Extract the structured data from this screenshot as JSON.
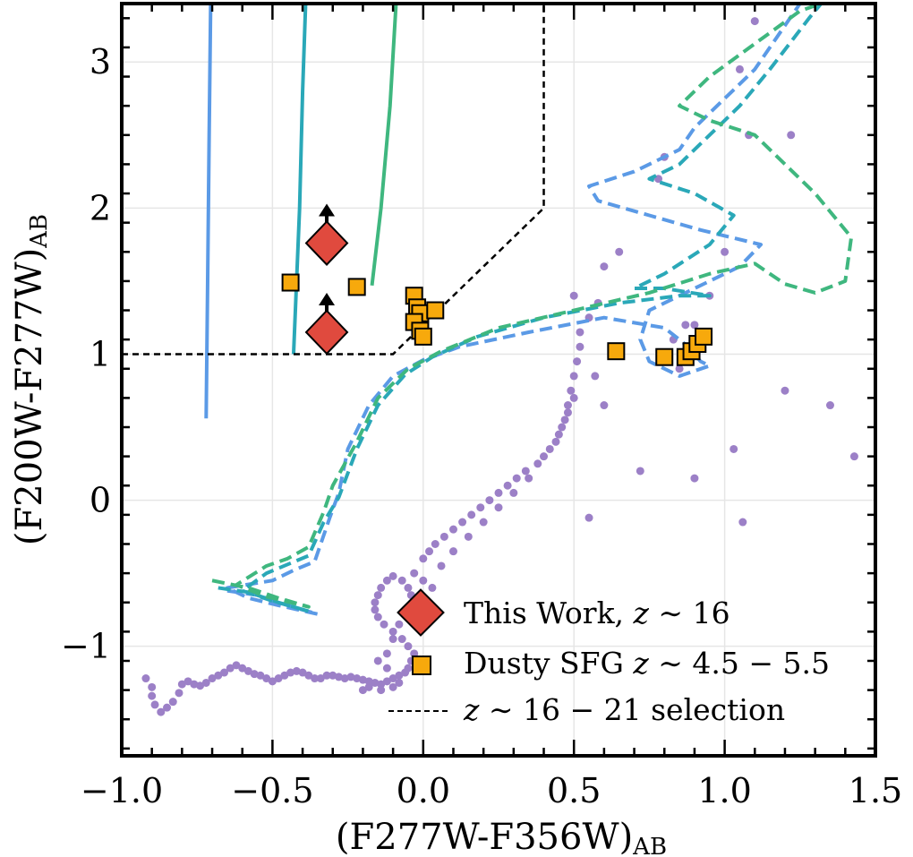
{
  "chart_data": {
    "type": "scatter",
    "xlabel": "(F277W-F356W)",
    "xlabel_sub": "AB",
    "ylabel": "(F200W-F277W)",
    "ylabel_sub": "AB",
    "xlim": [
      -1.0,
      1.5
    ],
    "ylim": [
      -1.75,
      3.4
    ],
    "xticks": [
      -1.0,
      -0.5,
      0.0,
      0.5,
      1.0,
      1.5
    ],
    "xtick_labels": [
      "−1.0",
      "−0.5",
      "0.0",
      "0.5",
      "1.0",
      "1.5"
    ],
    "yticks": [
      -1,
      0,
      1,
      2,
      3
    ],
    "ytick_labels": [
      "−1",
      "0",
      "1",
      "2",
      "3"
    ],
    "grid": true,
    "legend_position": "bottom-right",
    "legend": [
      {
        "label_pre": "This Work, ",
        "label_var": "z",
        "label_post": " ∼ 16"
      },
      {
        "label_pre": "Dusty SFG ",
        "label_var": "z",
        "label_post": " ∼ 4.5 − 5.5"
      },
      {
        "label_pre": "",
        "label_var": "z",
        "label_post": " ∼ 16 − 21 selection"
      }
    ],
    "this_work": {
      "color": "#e04a3e",
      "points": [
        [
          -0.32,
          1.76
        ],
        [
          -0.32,
          1.15
        ]
      ],
      "lower_limit": true
    },
    "dusty_sfg": {
      "color": "#f7a90c",
      "points": [
        [
          -0.44,
          1.49
        ],
        [
          -0.22,
          1.46
        ],
        [
          -0.03,
          1.4
        ],
        [
          -0.02,
          1.32
        ],
        [
          -0.01,
          1.28
        ],
        [
          -0.03,
          1.22
        ],
        [
          -0.01,
          1.16
        ],
        [
          0.0,
          1.12
        ],
        [
          0.04,
          1.3
        ],
        [
          0.64,
          1.02
        ],
        [
          0.8,
          0.98
        ],
        [
          0.87,
          0.98
        ],
        [
          0.89,
          1.02
        ],
        [
          0.91,
          1.07
        ],
        [
          0.93,
          1.12
        ]
      ]
    },
    "selection_boundary": {
      "color": "#000000",
      "points": [
        [
          -1.0,
          1.0
        ],
        [
          -0.1,
          1.0
        ],
        [
          0.4,
          2.0
        ],
        [
          0.4,
          3.4
        ]
      ]
    },
    "vertical_tracks": [
      {
        "color": "#5b9ae6",
        "points": [
          [
            -0.72,
            0.56
          ],
          [
            -0.715,
            1.5
          ],
          [
            -0.71,
            2.5
          ],
          [
            -0.705,
            3.4
          ]
        ]
      },
      {
        "color": "#2aa8b8",
        "points": [
          [
            -0.43,
            1.0
          ],
          [
            -0.41,
            2.0
          ],
          [
            -0.4,
            2.8
          ],
          [
            -0.39,
            3.4
          ]
        ]
      },
      {
        "color": "#3fb77f",
        "points": [
          [
            -0.17,
            1.47
          ],
          [
            -0.14,
            2.0
          ],
          [
            -0.11,
            2.7
          ],
          [
            -0.09,
            3.4
          ]
        ]
      }
    ],
    "dashed_tracks": [
      {
        "color": "#5b9ae6",
        "points": [
          [
            -0.65,
            -0.62
          ],
          [
            -0.55,
            -0.65
          ],
          [
            -0.45,
            -0.72
          ],
          [
            -0.35,
            -0.78
          ],
          [
            -0.48,
            -0.72
          ],
          [
            -0.58,
            -0.67
          ],
          [
            -0.65,
            -0.6
          ],
          [
            -0.5,
            -0.55
          ],
          [
            -0.43,
            -0.48
          ],
          [
            -0.36,
            -0.42
          ],
          [
            -0.31,
            -0.12
          ],
          [
            -0.28,
            0.05
          ],
          [
            -0.25,
            0.35
          ],
          [
            -0.18,
            0.65
          ],
          [
            -0.1,
            0.85
          ],
          [
            0.0,
            0.96
          ],
          [
            0.12,
            1.05
          ],
          [
            0.35,
            1.15
          ],
          [
            0.6,
            1.25
          ],
          [
            0.8,
            1.18
          ],
          [
            0.88,
            1.05
          ],
          [
            0.92,
            0.95
          ],
          [
            0.95,
            0.92
          ],
          [
            0.85,
            0.85
          ],
          [
            0.75,
            0.95
          ],
          [
            0.72,
            1.1
          ],
          [
            0.75,
            1.3
          ],
          [
            0.9,
            1.45
          ],
          [
            1.05,
            1.6
          ],
          [
            1.12,
            1.75
          ],
          [
            0.92,
            1.85
          ],
          [
            0.75,
            1.95
          ],
          [
            0.58,
            2.05
          ],
          [
            0.55,
            2.15
          ],
          [
            0.7,
            2.25
          ],
          [
            0.85,
            2.4
          ],
          [
            0.9,
            2.55
          ],
          [
            1.0,
            2.75
          ],
          [
            1.1,
            2.95
          ],
          [
            1.2,
            3.25
          ],
          [
            1.25,
            3.4
          ]
        ]
      },
      {
        "color": "#2aa8b8",
        "points": [
          [
            -0.68,
            -0.6
          ],
          [
            -0.58,
            -0.63
          ],
          [
            -0.48,
            -0.7
          ],
          [
            -0.38,
            -0.76
          ],
          [
            -0.5,
            -0.69
          ],
          [
            -0.6,
            -0.62
          ],
          [
            -0.52,
            -0.5
          ],
          [
            -0.45,
            -0.44
          ],
          [
            -0.38,
            -0.38
          ],
          [
            -0.33,
            -0.15
          ],
          [
            -0.28,
            0.02
          ],
          [
            -0.22,
            0.35
          ],
          [
            -0.15,
            0.65
          ],
          [
            -0.06,
            0.86
          ],
          [
            0.03,
            0.98
          ],
          [
            0.18,
            1.12
          ],
          [
            0.4,
            1.25
          ],
          [
            0.65,
            1.35
          ],
          [
            0.85,
            1.4
          ],
          [
            0.95,
            1.4
          ],
          [
            0.8,
            1.45
          ],
          [
            0.7,
            1.45
          ],
          [
            0.8,
            1.55
          ],
          [
            0.95,
            1.75
          ],
          [
            1.03,
            1.95
          ],
          [
            0.9,
            2.1
          ],
          [
            0.75,
            2.2
          ],
          [
            0.85,
            2.3
          ],
          [
            0.95,
            2.5
          ],
          [
            1.05,
            2.7
          ],
          [
            1.15,
            2.95
          ],
          [
            1.28,
            3.3
          ],
          [
            1.32,
            3.4
          ]
        ]
      },
      {
        "color": "#3fb77f",
        "points": [
          [
            -0.7,
            -0.55
          ],
          [
            -0.58,
            -0.6
          ],
          [
            -0.48,
            -0.67
          ],
          [
            -0.38,
            -0.73
          ],
          [
            -0.52,
            -0.66
          ],
          [
            -0.62,
            -0.58
          ],
          [
            -0.52,
            -0.45
          ],
          [
            -0.45,
            -0.4
          ],
          [
            -0.38,
            -0.32
          ],
          [
            -0.33,
            -0.08
          ],
          [
            -0.3,
            0.1
          ],
          [
            -0.22,
            0.4
          ],
          [
            -0.15,
            0.7
          ],
          [
            -0.05,
            0.9
          ],
          [
            0.06,
            1.02
          ],
          [
            0.25,
            1.18
          ],
          [
            0.5,
            1.3
          ],
          [
            0.75,
            1.42
          ],
          [
            0.95,
            1.55
          ],
          [
            1.1,
            1.62
          ],
          [
            1.2,
            1.48
          ],
          [
            1.3,
            1.42
          ],
          [
            1.4,
            1.5
          ],
          [
            1.42,
            1.8
          ],
          [
            1.3,
            2.1
          ],
          [
            1.2,
            2.3
          ],
          [
            1.1,
            2.5
          ],
          [
            0.95,
            2.6
          ],
          [
            0.85,
            2.7
          ],
          [
            0.95,
            2.9
          ],
          [
            1.15,
            3.2
          ],
          [
            1.25,
            3.35
          ],
          [
            1.32,
            3.4
          ]
        ]
      }
    ],
    "purple_points": {
      "color": "#9c80c7",
      "points": [
        [
          -0.92,
          -1.22
        ],
        [
          -0.9,
          -1.28
        ],
        [
          -0.9,
          -1.34
        ],
        [
          -0.89,
          -1.4
        ],
        [
          -0.87,
          -1.45
        ],
        [
          -0.85,
          -1.42
        ],
        [
          -0.83,
          -1.38
        ],
        [
          -0.81,
          -1.32
        ],
        [
          -0.8,
          -1.26
        ],
        [
          -0.78,
          -1.24
        ],
        [
          -0.76,
          -1.26
        ],
        [
          -0.74,
          -1.27
        ],
        [
          -0.72,
          -1.25
        ],
        [
          -0.7,
          -1.22
        ],
        [
          -0.68,
          -1.2
        ],
        [
          -0.66,
          -1.18
        ],
        [
          -0.64,
          -1.15
        ],
        [
          -0.62,
          -1.13
        ],
        [
          -0.6,
          -1.15
        ],
        [
          -0.58,
          -1.17
        ],
        [
          -0.56,
          -1.19
        ],
        [
          -0.54,
          -1.2
        ],
        [
          -0.52,
          -1.22
        ],
        [
          -0.5,
          -1.24
        ],
        [
          -0.48,
          -1.22
        ],
        [
          -0.46,
          -1.2
        ],
        [
          -0.44,
          -1.18
        ],
        [
          -0.42,
          -1.17
        ],
        [
          -0.4,
          -1.18
        ],
        [
          -0.38,
          -1.2
        ],
        [
          -0.36,
          -1.22
        ],
        [
          -0.34,
          -1.22
        ],
        [
          -0.32,
          -1.2
        ],
        [
          -0.3,
          -1.2
        ],
        [
          -0.28,
          -1.21
        ],
        [
          -0.26,
          -1.22
        ],
        [
          -0.24,
          -1.21
        ],
        [
          -0.22,
          -1.22
        ],
        [
          -0.2,
          -1.23
        ],
        [
          -0.18,
          -1.24
        ],
        [
          -0.16,
          -1.25
        ],
        [
          -0.14,
          -1.26
        ],
        [
          -0.12,
          -1.24
        ],
        [
          -0.1,
          -1.22
        ],
        [
          -0.08,
          -1.2
        ],
        [
          -0.06,
          -1.18
        ],
        [
          -0.05,
          -1.15
        ],
        [
          -0.04,
          -1.1
        ],
        [
          -0.03,
          -1.05
        ],
        [
          -0.05,
          -1.0
        ],
        [
          -0.07,
          -0.95
        ],
        [
          -0.1,
          -0.9
        ],
        [
          -0.13,
          -0.85
        ],
        [
          -0.15,
          -0.8
        ],
        [
          -0.16,
          -0.75
        ],
        [
          -0.16,
          -0.7
        ],
        [
          -0.15,
          -0.65
        ],
        [
          -0.14,
          -0.6
        ],
        [
          -0.12,
          -0.55
        ],
        [
          -0.1,
          -0.52
        ],
        [
          -0.07,
          -0.55
        ],
        [
          -0.05,
          -0.6
        ],
        [
          -0.03,
          -0.5
        ],
        [
          0.0,
          -0.4
        ],
        [
          0.02,
          -0.35
        ],
        [
          0.04,
          -0.3
        ],
        [
          0.07,
          -0.25
        ],
        [
          0.1,
          -0.2
        ],
        [
          0.13,
          -0.15
        ],
        [
          0.16,
          -0.1
        ],
        [
          0.19,
          -0.05
        ],
        [
          0.22,
          0.0
        ],
        [
          0.25,
          0.05
        ],
        [
          0.28,
          0.1
        ],
        [
          0.31,
          0.15
        ],
        [
          0.34,
          0.2
        ],
        [
          0.38,
          0.25
        ],
        [
          0.42,
          0.35
        ],
        [
          0.45,
          0.45
        ],
        [
          0.47,
          0.55
        ],
        [
          0.48,
          0.65
        ],
        [
          0.49,
          0.75
        ],
        [
          0.5,
          0.85
        ],
        [
          0.51,
          0.95
        ],
        [
          0.52,
          1.05
        ],
        [
          0.52,
          1.15
        ],
        [
          0.06,
          -0.45
        ],
        [
          0.1,
          -0.35
        ],
        [
          0.15,
          -0.25
        ],
        [
          0.2,
          -0.15
        ],
        [
          0.25,
          -0.05
        ],
        [
          0.3,
          0.05
        ],
        [
          0.35,
          0.15
        ],
        [
          0.4,
          0.3
        ],
        [
          0.44,
          0.4
        ],
        [
          0.46,
          0.5
        ],
        [
          0.48,
          0.6
        ],
        [
          0.5,
          0.7
        ],
        [
          -0.2,
          -1.3
        ],
        [
          -0.18,
          -1.28
        ],
        [
          -0.14,
          -1.3
        ],
        [
          -0.1,
          -1.28
        ],
        [
          -0.08,
          -1.25
        ],
        [
          -0.12,
          -1.15
        ],
        [
          -0.15,
          -1.1
        ],
        [
          -0.12,
          -1.05
        ],
        [
          -0.1,
          -0.95
        ],
        [
          -0.08,
          -0.85
        ],
        [
          -0.06,
          -0.75
        ],
        [
          -0.04,
          -0.65
        ],
        [
          0.0,
          -0.55
        ],
        [
          0.03,
          -0.6
        ],
        [
          0.5,
          1.4
        ],
        [
          0.6,
          0.65
        ],
        [
          0.57,
          0.85
        ],
        [
          0.55,
          1.25
        ],
        [
          0.58,
          1.35
        ],
        [
          0.6,
          1.6
        ],
        [
          0.65,
          1.7
        ],
        [
          0.55,
          -0.12
        ],
        [
          0.8,
          2.35
        ],
        [
          0.78,
          2.2
        ],
        [
          0.9,
          0.15
        ],
        [
          0.9,
          1.2
        ],
        [
          1.0,
          1.7
        ],
        [
          1.03,
          0.35
        ],
        [
          1.06,
          -0.15
        ],
        [
          1.08,
          2.5
        ],
        [
          1.1,
          3.28
        ],
        [
          1.2,
          0.75
        ],
        [
          1.22,
          2.5
        ],
        [
          1.35,
          0.65
        ],
        [
          1.43,
          0.3
        ],
        [
          0.72,
          0.2
        ],
        [
          0.83,
          1.1
        ],
        [
          0.85,
          0.9
        ],
        [
          0.87,
          1.2
        ],
        [
          0.95,
          1.4
        ],
        [
          1.05,
          2.95
        ]
      ]
    }
  }
}
